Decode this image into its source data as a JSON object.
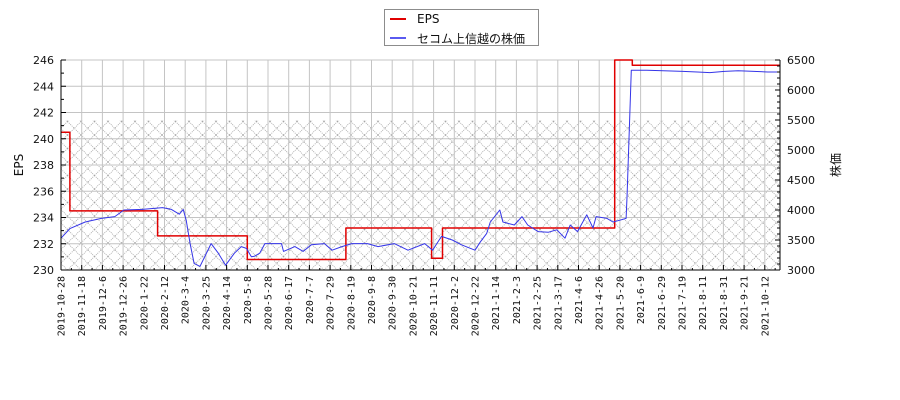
{
  "chart_data": {
    "type": "line",
    "title": "",
    "xlabel": "",
    "legend": {
      "position": "top-center"
    },
    "grid": true,
    "x_ticks": [
      "2019-10-28",
      "2019-11-18",
      "2019-12-6",
      "2019-12-26",
      "2020-1-22",
      "2020-2-12",
      "2020-3-4",
      "2020-3-25",
      "2020-4-14",
      "2020-5-8",
      "2020-5-28",
      "2020-6-17",
      "2020-7-7",
      "2020-7-29",
      "2020-8-19",
      "2020-9-8",
      "2020-9-30",
      "2020-10-21",
      "2020-11-11",
      "2020-12-2",
      "2020-12-22",
      "2021-1-14",
      "2021-2-3",
      "2021-2-25",
      "2021-3-17",
      "2021-4-6",
      "2021-4-26",
      "2021-5-20",
      "2021-6-9",
      "2021-6-29",
      "2021-7-19",
      "2021-8-11",
      "2021-8-31",
      "2021-9-21",
      "2021-10-12"
    ],
    "y_left": {
      "label": "EPS",
      "min": 230,
      "max": 246,
      "ticks": [
        230,
        232,
        234,
        236,
        238,
        240,
        242,
        244,
        246
      ],
      "minor_step": 1
    },
    "y_right": {
      "label": "株価",
      "min": 3000,
      "max": 6500,
      "ticks": [
        3000,
        3500,
        4000,
        4500,
        5000,
        5500,
        6000,
        6500
      ],
      "minor_step": 100
    },
    "background_band": {
      "axis": "right",
      "from": 3000,
      "to": 5500,
      "pattern": "crosshatch"
    },
    "series": [
      {
        "name": "EPS",
        "axis": "left",
        "color": "#e00000",
        "step": true,
        "points": [
          [
            "2019-10-28",
            240.5
          ],
          [
            "2019-11-06",
            234.5
          ],
          [
            "2020-02-05",
            232.6
          ],
          [
            "2020-05-08",
            230.8
          ],
          [
            "2020-08-14",
            233.2
          ],
          [
            "2020-11-09",
            230.9
          ],
          [
            "2020-11-20",
            233.2
          ],
          [
            "2021-05-14",
            246.0
          ],
          [
            "2021-06-01",
            245.6
          ],
          [
            "2021-10-27",
            245.6
          ]
        ]
      },
      {
        "name": "セコム上信越の株価",
        "axis": "right",
        "color": "#3535e8",
        "step": false,
        "points": [
          [
            "2019-10-28",
            3530
          ],
          [
            "2019-11-06",
            3690
          ],
          [
            "2019-11-21",
            3800
          ],
          [
            "2019-12-05",
            3860
          ],
          [
            "2019-12-18",
            3890
          ],
          [
            "2019-12-27",
            4000
          ],
          [
            "2020-01-20",
            4010
          ],
          [
            "2020-02-03",
            4030
          ],
          [
            "2020-02-10",
            4040
          ],
          [
            "2020-02-19",
            4010
          ],
          [
            "2020-02-27",
            3930
          ],
          [
            "2020-03-02",
            4010
          ],
          [
            "2020-03-05",
            3830
          ],
          [
            "2020-03-09",
            3440
          ],
          [
            "2020-03-13",
            3110
          ],
          [
            "2020-03-19",
            3060
          ],
          [
            "2020-03-30",
            3440
          ],
          [
            "2020-04-06",
            3280
          ],
          [
            "2020-04-13",
            3080
          ],
          [
            "2020-04-23",
            3280
          ],
          [
            "2020-05-01",
            3390
          ],
          [
            "2020-05-07",
            3360
          ],
          [
            "2020-05-12",
            3220
          ],
          [
            "2020-05-15",
            3230
          ],
          [
            "2020-05-20",
            3280
          ],
          [
            "2020-05-25",
            3440
          ],
          [
            "2020-06-10",
            3440
          ],
          [
            "2020-06-12",
            3310
          ],
          [
            "2020-06-23",
            3390
          ],
          [
            "2020-07-01",
            3310
          ],
          [
            "2020-07-09",
            3420
          ],
          [
            "2020-07-23",
            3440
          ],
          [
            "2020-07-31",
            3330
          ],
          [
            "2020-08-10",
            3390
          ],
          [
            "2020-08-20",
            3440
          ],
          [
            "2020-09-04",
            3440
          ],
          [
            "2020-09-15",
            3390
          ],
          [
            "2020-10-02",
            3440
          ],
          [
            "2020-10-16",
            3330
          ],
          [
            "2020-11-02",
            3440
          ],
          [
            "2020-11-10",
            3330
          ],
          [
            "2020-11-19",
            3560
          ],
          [
            "2020-11-30",
            3500
          ],
          [
            "2020-12-09",
            3420
          ],
          [
            "2020-12-22",
            3330
          ],
          [
            "2020-12-28",
            3470
          ],
          [
            "2021-01-04",
            3610
          ],
          [
            "2021-01-08",
            3800
          ],
          [
            "2021-01-18",
            4000
          ],
          [
            "2021-01-21",
            3800
          ],
          [
            "2021-02-01",
            3750
          ],
          [
            "2021-02-09",
            3890
          ],
          [
            "2021-02-15",
            3750
          ],
          [
            "2021-02-26",
            3640
          ],
          [
            "2021-03-08",
            3630
          ],
          [
            "2021-03-16",
            3670
          ],
          [
            "2021-03-24",
            3530
          ],
          [
            "2021-03-29",
            3750
          ],
          [
            "2021-04-05",
            3640
          ],
          [
            "2021-04-14",
            3920
          ],
          [
            "2021-04-20",
            3700
          ],
          [
            "2021-04-23",
            3890
          ],
          [
            "2021-05-05",
            3860
          ],
          [
            "2021-05-12",
            3800
          ],
          [
            "2021-05-20",
            3830
          ],
          [
            "2021-05-26",
            3860
          ],
          [
            "2021-05-27",
            4250
          ],
          [
            "2021-05-31",
            6330
          ],
          [
            "2021-06-15",
            6330
          ],
          [
            "2021-07-01",
            6320
          ],
          [
            "2021-07-20",
            6310
          ],
          [
            "2021-08-05",
            6300
          ],
          [
            "2021-08-18",
            6290
          ],
          [
            "2021-09-01",
            6310
          ],
          [
            "2021-09-15",
            6320
          ],
          [
            "2021-10-01",
            6310
          ],
          [
            "2021-10-15",
            6300
          ],
          [
            "2021-10-27",
            6300
          ]
        ]
      }
    ]
  }
}
